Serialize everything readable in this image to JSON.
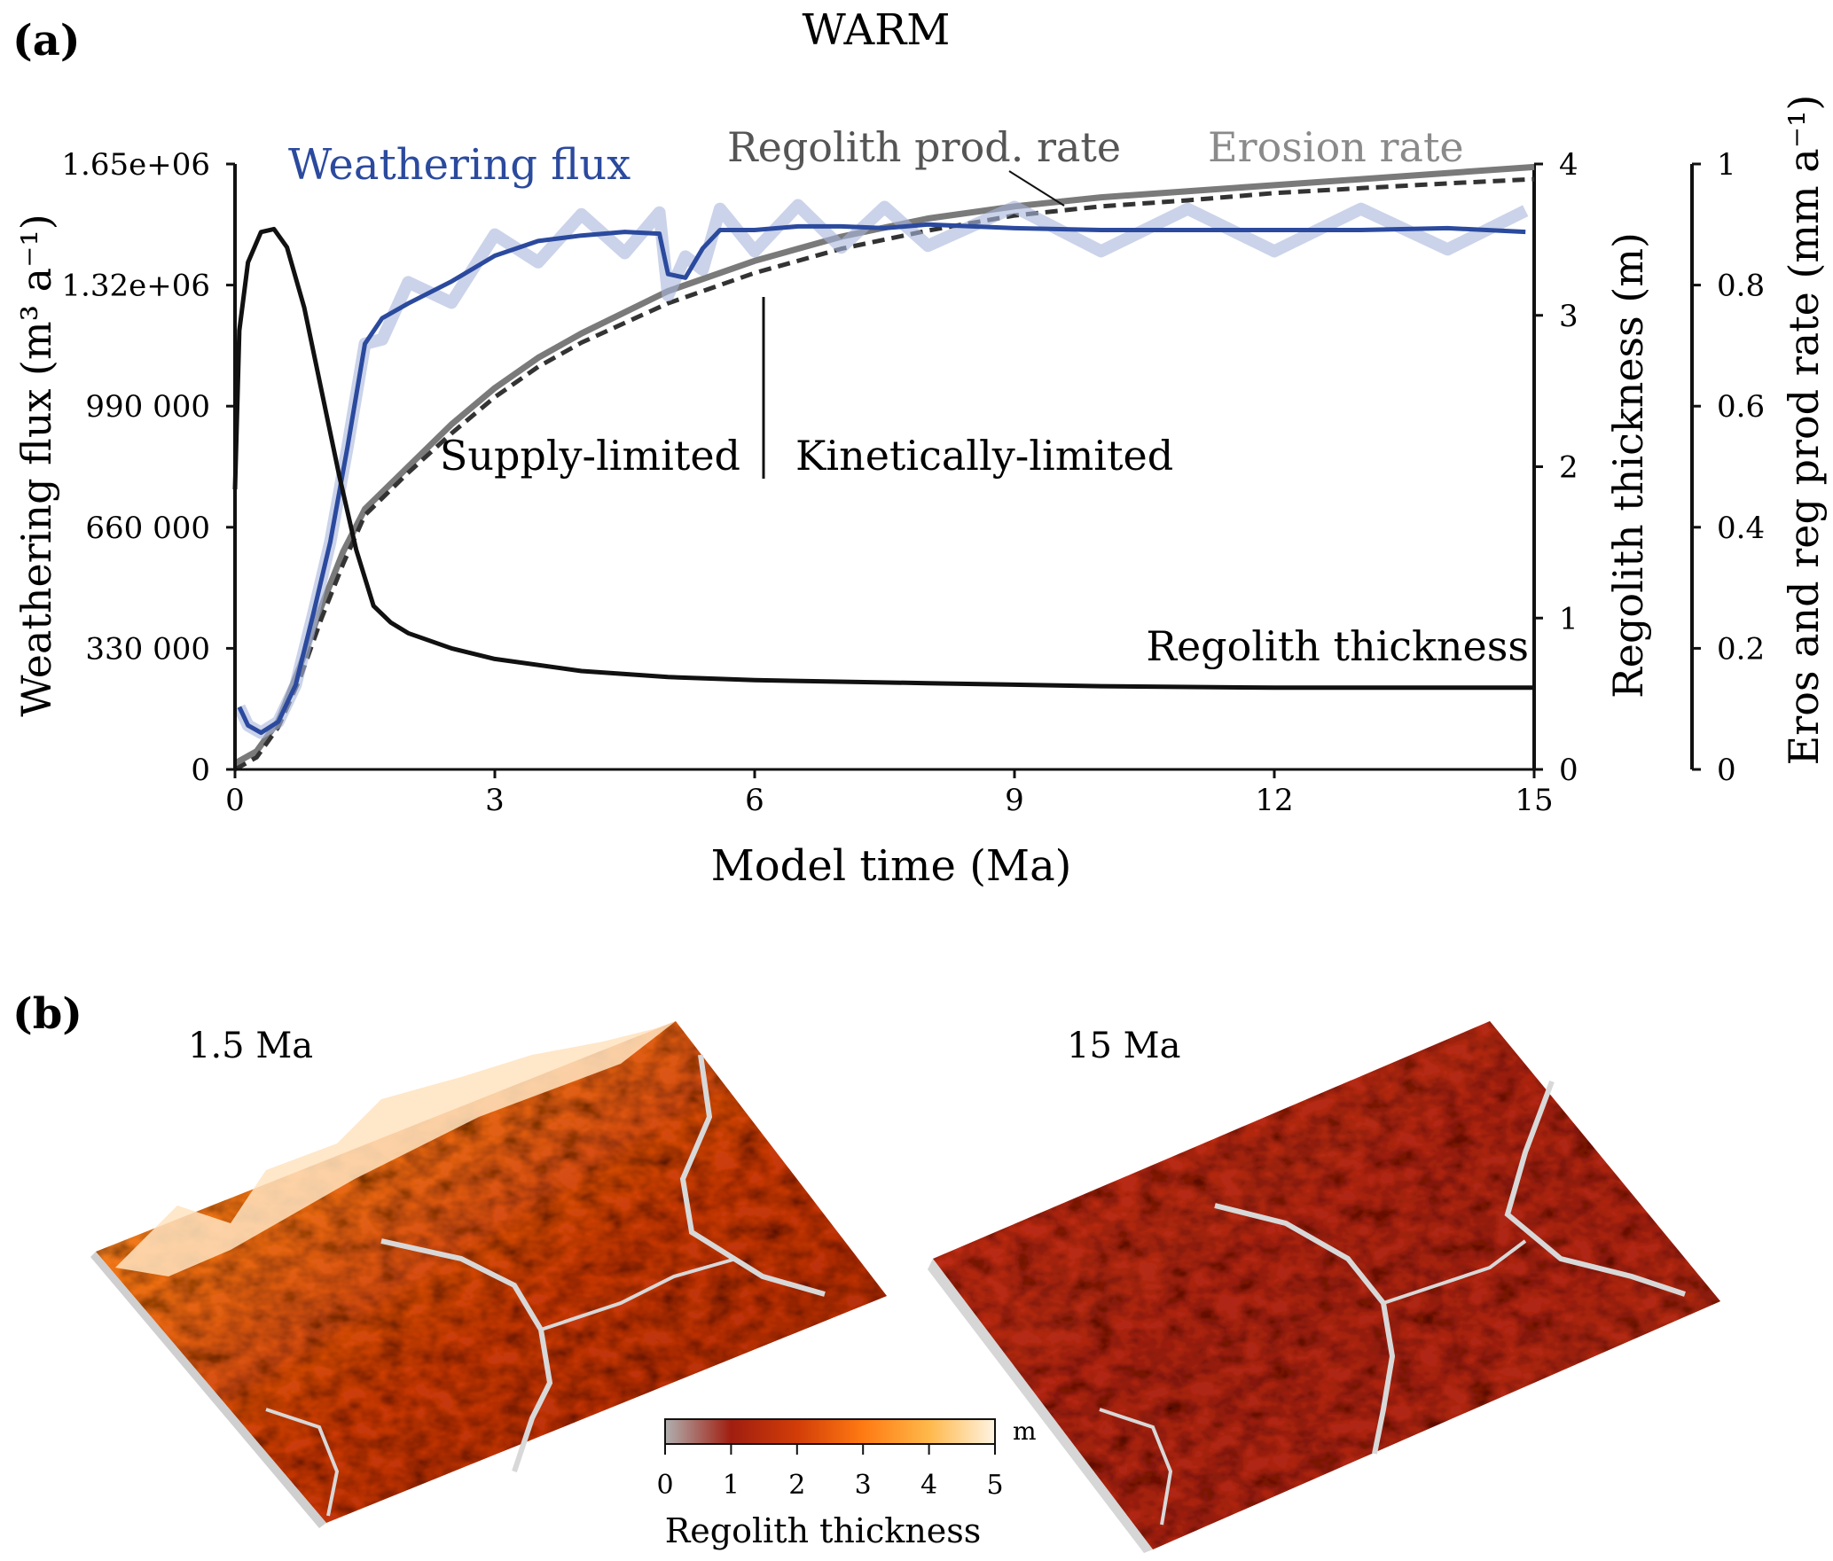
{
  "panel_a": {
    "label": "(a)",
    "title": "WARM",
    "annotations": {
      "supply_limited": "Supply-limited",
      "kinetically_limited": "Kinetically-limited",
      "regolith_thickness": "Regolith thickness",
      "weathering_flux": "Weathering  flux",
      "regolith_prod_rate": "Regolith prod. rate",
      "erosion_rate": "Erosion rate"
    }
  },
  "panel_b": {
    "label": "(b)",
    "map_left_label": "1.5 Ma",
    "map_right_label": "15 Ma",
    "colorbar": {
      "title": "Regolith thickness",
      "unit": "m",
      "ticks": [
        "0",
        "1",
        "2",
        "3",
        "4",
        "5"
      ],
      "colors": [
        "#b0b0b0",
        "#a01e10",
        "#d23d08",
        "#ff7a12",
        "#ffb84a",
        "#fff4e2"
      ]
    }
  },
  "chart_data": {
    "type": "line",
    "title": "WARM",
    "xlabel": "Model time (Ma)",
    "xlim": [
      0,
      15
    ],
    "x_ticks": [
      "0",
      "3",
      "6",
      "9",
      "12",
      "15"
    ],
    "x_tick_values": [
      0,
      3,
      6,
      9,
      12,
      15
    ],
    "y_left": {
      "label": "Weathering flux (m³ a⁻¹)",
      "range": [
        0,
        1650000
      ],
      "ticks": [
        "0",
        "330 000",
        "660 000",
        "990 000",
        "1.32e+06",
        "1.65e+06"
      ],
      "tick_values": [
        0,
        330000,
        660000,
        990000,
        1320000,
        1650000
      ]
    },
    "y_mid": {
      "label": "Regolith thickness (m)",
      "range": [
        0,
        4
      ],
      "ticks": [
        "0",
        "1",
        "2",
        "3",
        "4"
      ],
      "tick_values": [
        0,
        1,
        2,
        3,
        4
      ]
    },
    "y_right": {
      "label": "Eros and reg prod rate (mm a⁻¹)",
      "range": [
        0,
        1
      ],
      "ticks": [
        "0",
        "0.2",
        "0.4",
        "0.6",
        "0.8",
        "1"
      ],
      "tick_values": [
        0,
        0.2,
        0.4,
        0.6,
        0.8,
        1
      ]
    },
    "regime_boundary_x": 6.1,
    "series": [
      {
        "name": "Weathering flux",
        "axis": "left",
        "color": "#2b4a9e",
        "style": "solid",
        "x": [
          0.05,
          0.15,
          0.3,
          0.5,
          0.7,
          0.9,
          1.1,
          1.3,
          1.5,
          1.7,
          2.0,
          2.5,
          3.0,
          3.5,
          4.0,
          4.5,
          4.9,
          5.0,
          5.2,
          5.4,
          5.6,
          6.0,
          6.5,
          7.0,
          7.5,
          8.0,
          9.0,
          10.0,
          11.0,
          12.0,
          13.0,
          14.0,
          14.9
        ],
        "values": [
          170000,
          120000,
          100000,
          130000,
          230000,
          420000,
          620000,
          880000,
          1160000,
          1230000,
          1270000,
          1330000,
          1400000,
          1440000,
          1455000,
          1465000,
          1460000,
          1350000,
          1340000,
          1420000,
          1470000,
          1470000,
          1480000,
          1480000,
          1475000,
          1485000,
          1475000,
          1470000,
          1470000,
          1470000,
          1470000,
          1475000,
          1465000
        ]
      },
      {
        "name": "Regolith thickness",
        "axis": "mid",
        "color": "#111111",
        "style": "solid",
        "x": [
          0.0,
          0.05,
          0.15,
          0.3,
          0.45,
          0.6,
          0.8,
          1.0,
          1.2,
          1.4,
          1.6,
          1.8,
          2.0,
          2.5,
          3.0,
          4.0,
          5.0,
          6.0,
          8.0,
          10.0,
          12.0,
          15.0
        ],
        "values": [
          1.85,
          2.9,
          3.35,
          3.55,
          3.57,
          3.45,
          3.05,
          2.5,
          1.95,
          1.45,
          1.08,
          0.97,
          0.9,
          0.8,
          0.73,
          0.65,
          0.61,
          0.59,
          0.57,
          0.55,
          0.54,
          0.54
        ]
      },
      {
        "name": "Erosion rate",
        "axis": "right",
        "color": "#7a7a7a",
        "style": "solid",
        "x": [
          0.0,
          0.25,
          0.5,
          0.75,
          1.0,
          1.25,
          1.5,
          2.0,
          2.5,
          3.0,
          3.5,
          4.0,
          5.0,
          6.0,
          7.0,
          8.0,
          9.0,
          10.0,
          11.0,
          12.0,
          13.0,
          14.0,
          15.0
        ],
        "values": [
          0.01,
          0.03,
          0.08,
          0.17,
          0.27,
          0.36,
          0.43,
          0.5,
          0.57,
          0.63,
          0.68,
          0.72,
          0.79,
          0.84,
          0.88,
          0.91,
          0.93,
          0.945,
          0.955,
          0.965,
          0.975,
          0.985,
          0.995
        ]
      },
      {
        "name": "Regolith prod. rate",
        "axis": "right",
        "color": "#333333",
        "style": "dashed",
        "x": [
          0.0,
          0.25,
          0.5,
          0.75,
          1.0,
          1.25,
          1.5,
          2.0,
          2.5,
          3.0,
          3.5,
          4.0,
          5.0,
          6.0,
          7.0,
          8.0,
          9.0,
          10.0,
          11.0,
          12.0,
          13.0,
          14.0,
          15.0
        ],
        "values": [
          0.0,
          0.02,
          0.07,
          0.15,
          0.25,
          0.34,
          0.42,
          0.49,
          0.555,
          0.615,
          0.665,
          0.705,
          0.77,
          0.82,
          0.86,
          0.89,
          0.915,
          0.93,
          0.94,
          0.952,
          0.96,
          0.968,
          0.975
        ]
      }
    ]
  }
}
